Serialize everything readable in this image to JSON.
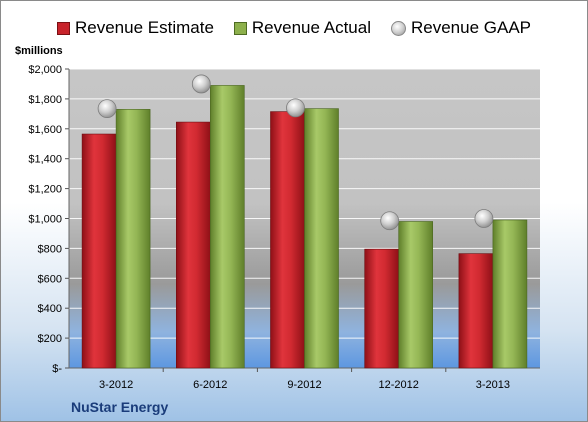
{
  "legend": {
    "estimate": "Revenue Estimate",
    "actual": "Revenue Actual",
    "gaap": "Revenue GAAP"
  },
  "unit_label": "$millions",
  "company": "NuStar Energy",
  "colors": {
    "estimate": "#c8232b",
    "actual": "#8db04c",
    "gaap": "#c8c8c8"
  },
  "chart_data": {
    "type": "bar",
    "categories": [
      "3-2012",
      "6-2012",
      "9-2012",
      "12-2012",
      "3-2013"
    ],
    "series": [
      {
        "name": "Revenue Estimate",
        "type": "bar",
        "values": [
          1565,
          1645,
          1715,
          795,
          765
        ]
      },
      {
        "name": "Revenue Actual",
        "type": "bar",
        "values": [
          1730,
          1890,
          1735,
          980,
          990
        ]
      },
      {
        "name": "Revenue GAAP",
        "type": "scatter",
        "values": [
          1735,
          1900,
          1740,
          985,
          1000
        ]
      }
    ],
    "ylabel": "$millions",
    "ylim": [
      0,
      2000
    ],
    "yticks": [
      0,
      200,
      400,
      600,
      800,
      1000,
      1200,
      1400,
      1600,
      1800,
      2000
    ],
    "ytick_labels": [
      "$-",
      "$200",
      "$400",
      "$600",
      "$800",
      "$1,000",
      "$1,200",
      "$1,400",
      "$1,600",
      "$1,800",
      "$2,000"
    ],
    "grid": true,
    "legend_position": "top"
  }
}
